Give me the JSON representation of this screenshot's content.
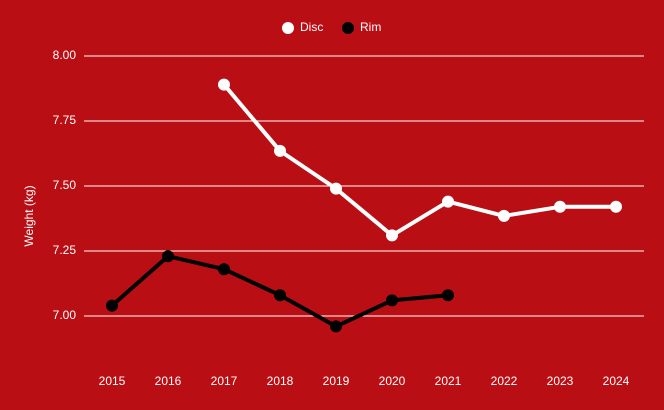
{
  "chart_data": {
    "type": "line",
    "y_label": "Weight (kg)",
    "categories": [
      "2015",
      "2016",
      "2017",
      "2018",
      "2019",
      "2020",
      "2021",
      "2022",
      "2023",
      "2024"
    ],
    "series": [
      {
        "name": "Disc",
        "color": "#ffffff",
        "values": [
          null,
          null,
          7.89,
          7.635,
          7.49,
          7.31,
          7.44,
          7.385,
          7.42,
          7.42
        ]
      },
      {
        "name": "Rim",
        "color": "#000000",
        "values": [
          7.04,
          7.23,
          7.18,
          7.08,
          6.96,
          7.06,
          7.08,
          null,
          null,
          null
        ]
      }
    ],
    "ylim": [
      6.8,
      8.0
    ],
    "yticks": [
      {
        "value": 7.0,
        "label": "7.00"
      },
      {
        "value": 7.25,
        "label": "7.25"
      },
      {
        "value": 7.5,
        "label": "7.50"
      },
      {
        "value": 7.75,
        "label": "7.75"
      },
      {
        "value": 8.0,
        "label": "8.00"
      }
    ],
    "grid": true,
    "background": "#b90e14",
    "grid_color": "#ffffff"
  }
}
